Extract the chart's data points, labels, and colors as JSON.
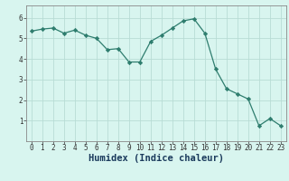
{
  "x": [
    0,
    1,
    2,
    3,
    4,
    5,
    6,
    7,
    8,
    9,
    10,
    11,
    12,
    13,
    14,
    15,
    16,
    17,
    18,
    19,
    20,
    21,
    22,
    23
  ],
  "y": [
    5.35,
    5.45,
    5.5,
    5.25,
    5.4,
    5.15,
    5.0,
    4.45,
    4.5,
    3.85,
    3.85,
    4.85,
    5.15,
    5.5,
    5.85,
    5.95,
    5.25,
    3.5,
    2.55,
    2.3,
    2.05,
    0.75,
    1.1,
    0.75
  ],
  "line_color": "#2e7d6e",
  "marker": "D",
  "marker_size": 2.2,
  "bg_color": "#d8f5ef",
  "grid_color": "#b8dcd5",
  "xlabel": "Humidex (Indice chaleur)",
  "xlim": [
    -0.5,
    23.5
  ],
  "ylim": [
    0,
    6.6
  ],
  "yticks": [
    1,
    2,
    3,
    4,
    5,
    6
  ],
  "xticks": [
    0,
    1,
    2,
    3,
    4,
    5,
    6,
    7,
    8,
    9,
    10,
    11,
    12,
    13,
    14,
    15,
    16,
    17,
    18,
    19,
    20,
    21,
    22,
    23
  ],
  "tick_fontsize": 5.5,
  "xlabel_fontsize": 7.5,
  "xlabel_color": "#1a3a5c",
  "spine_color": "#888888"
}
